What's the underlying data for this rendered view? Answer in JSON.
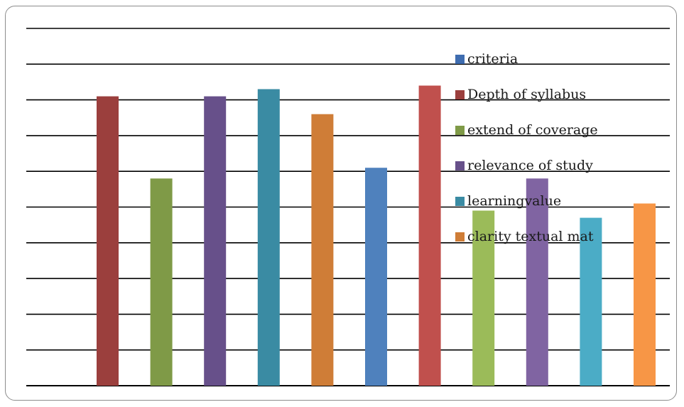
{
  "chart_data": {
    "type": "bar",
    "title": "",
    "xlabel": "",
    "ylabel": "",
    "ylim": [
      0,
      10
    ],
    "grid": true,
    "legend_position": "right",
    "values": [
      8.1,
      5.8,
      8.1,
      8.3,
      7.6,
      6.1,
      8.4,
      4.9,
      5.8,
      4.7,
      5.1
    ],
    "bar_colors": [
      "#9b3f3d",
      "#7f9a47",
      "#67508a",
      "#3a8ba3",
      "#cf7d37",
      "#4f81bd",
      "#c0504d",
      "#9bbb59",
      "#8064a2",
      "#4bacc6",
      "#f79646"
    ],
    "legend": [
      {
        "label": "criteria",
        "color": "#3f6db0"
      },
      {
        "label": "Depth of syllabus",
        "color": "#9b3f3d"
      },
      {
        "label": "extend of coverage",
        "color": "#7f9a47"
      },
      {
        "label": "relevance of study",
        "color": "#67508a"
      },
      {
        "label": "learningvalue",
        "color": "#3a8ba3"
      },
      {
        "label": "clarity textual mat",
        "color": "#cf7d37"
      }
    ]
  }
}
